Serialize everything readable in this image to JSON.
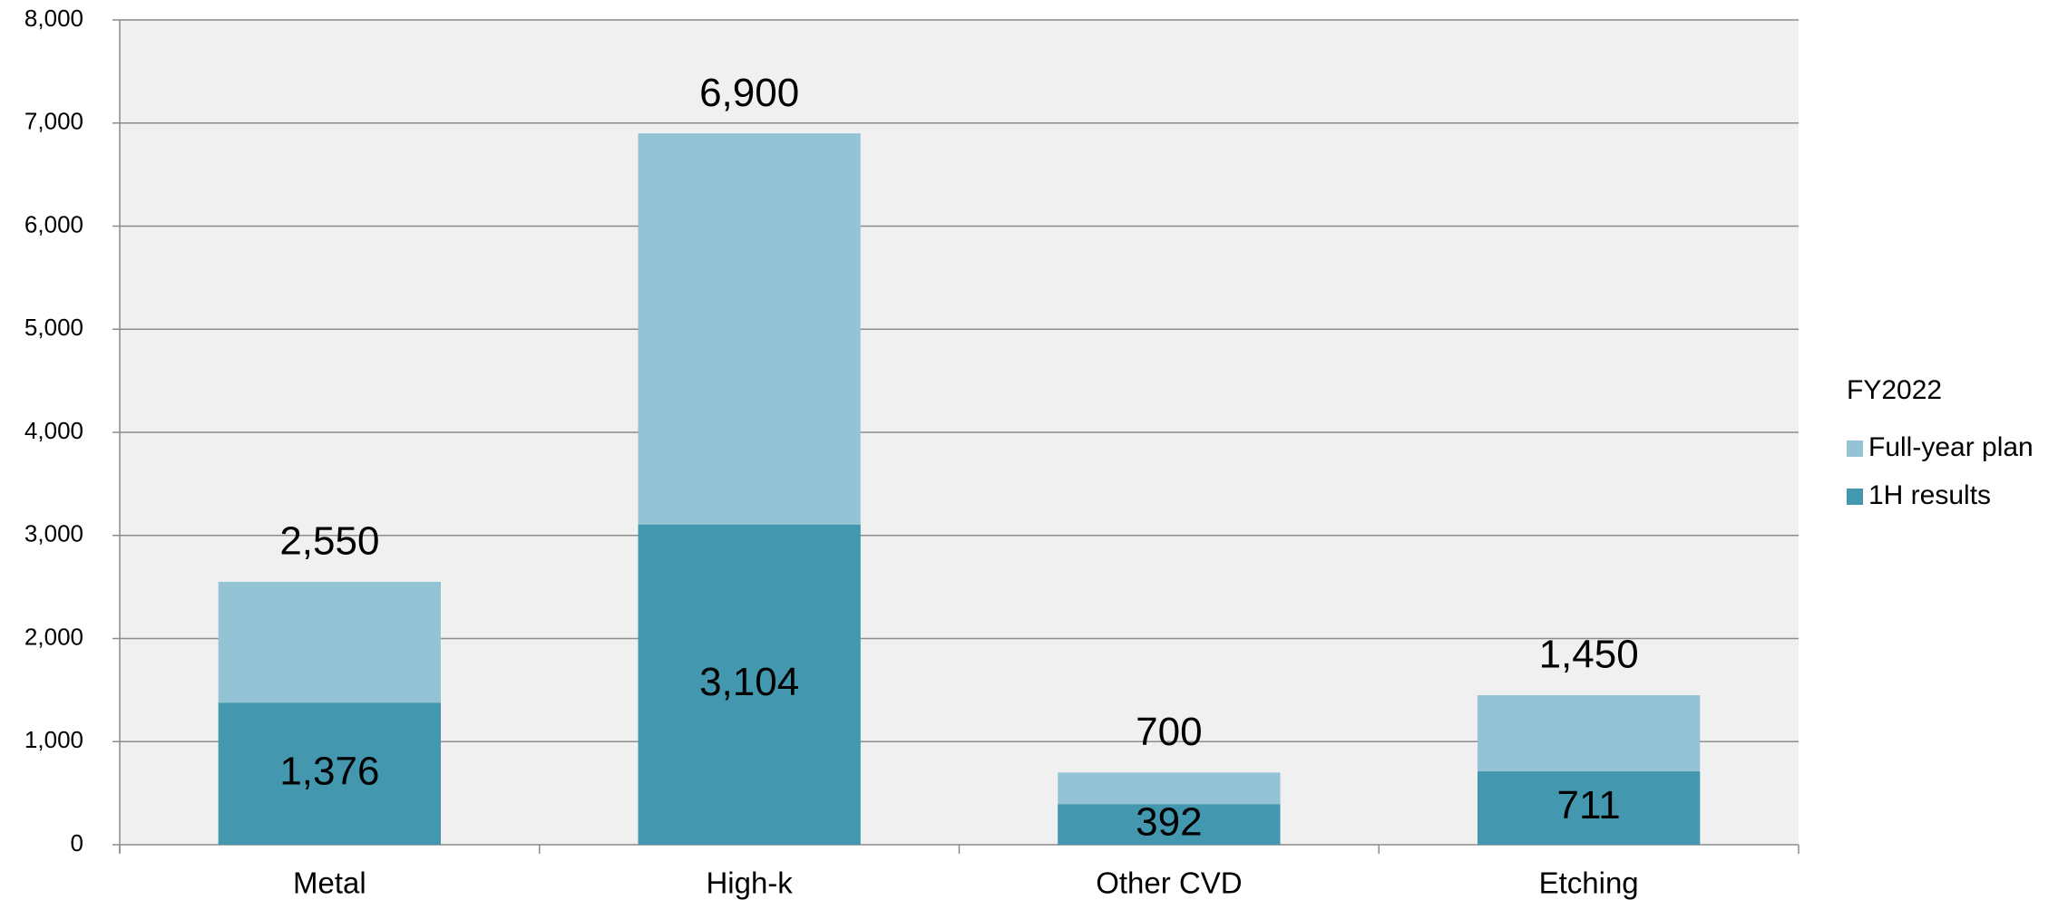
{
  "chart_data": {
    "type": "overlap_bar",
    "categories": [
      "Metal",
      "High-k",
      "Other CVD",
      "Etching"
    ],
    "legend_title": "FY2022",
    "series": [
      {
        "name": "Full-year plan",
        "color": "#93c3d5",
        "values": [
          2550,
          6900,
          700,
          1450
        ],
        "value_labels": [
          "2,550",
          "6,900",
          "700",
          "1,450"
        ]
      },
      {
        "name": "1H results",
        "color": "#4398b0",
        "values": [
          1376,
          3104,
          392,
          711
        ],
        "value_labels": [
          "1,376",
          "3,104",
          "392",
          "711"
        ]
      }
    ],
    "ylim": [
      0,
      8000
    ],
    "yticks": [
      0,
      {
        "value": 1000,
        "label": "1,000"
      },
      {
        "value": 2000,
        "label": "2,000"
      },
      {
        "value": 3000,
        "label": "3,000"
      },
      {
        "value": 4000,
        "label": "4,000"
      },
      {
        "value": 5000,
        "label": "5,000"
      },
      {
        "value": 6000,
        "label": "6,000"
      },
      {
        "value": 7000,
        "label": "7,000"
      },
      {
        "value": 8000,
        "label": "8,000"
      }
    ],
    "grid": true,
    "legend_position": "right"
  }
}
